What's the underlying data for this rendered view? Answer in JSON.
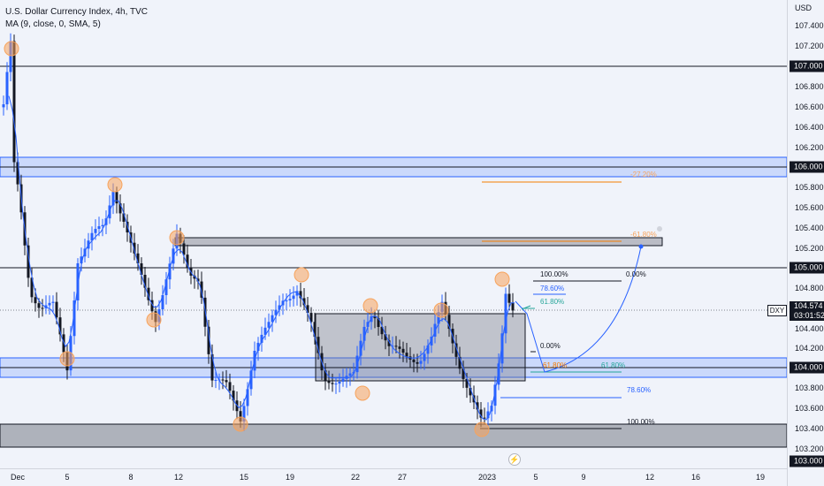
{
  "legend": {
    "title": "U.S. Dollar Currency Index, 4h, TVC",
    "indicator": "MA (9, close, 0, SMA, 5)"
  },
  "price_axis": {
    "currency": "USD",
    "ticks": [
      "107.400",
      "107.200",
      "107.000",
      "106.800",
      "106.600",
      "106.400",
      "106.200",
      "106.000",
      "105.800",
      "105.600",
      "105.400",
      "105.200",
      "105.000",
      "104.800",
      "104.600",
      "104.400",
      "104.200",
      "104.000",
      "103.800",
      "103.600",
      "103.400",
      "103.200",
      "103.000"
    ],
    "tags": {
      "t107": "107.000",
      "t106": "106.000",
      "t105": "105.000",
      "t104": "104.000",
      "t103": "103.000"
    },
    "current": {
      "symbol": "DXY",
      "price": "104.574",
      "countdown": "03:01:52"
    }
  },
  "time_axis": {
    "labels": [
      "Dec",
      "5",
      "8",
      "12",
      "15",
      "19",
      "22",
      "27",
      "2023",
      "5",
      "9",
      "12",
      "16",
      "19"
    ]
  },
  "fib_labels": {
    "upper_100": "100.00%",
    "upper_0": "0.00%",
    "upper_786": "78.60%",
    "upper_618": "61.80%",
    "mid_0": "0.00%",
    "mid_618": "61.80%",
    "lower_618": "61.80%",
    "lower_786": "78.60%",
    "lower_100": "100.00%",
    "target_1": "-27.20%",
    "target_2": "-61.80%"
  },
  "colors": {
    "up": "#2962ff",
    "down": "#131722",
    "ma": "#2962ff",
    "zone_blue": "#2962ff",
    "zone_fill": "rgba(41,98,255,0.18)",
    "marker": "#f7a35c",
    "box_fill": "rgba(120,123,134,0.45)"
  },
  "icons": {
    "replay": "lightning-icon"
  }
}
